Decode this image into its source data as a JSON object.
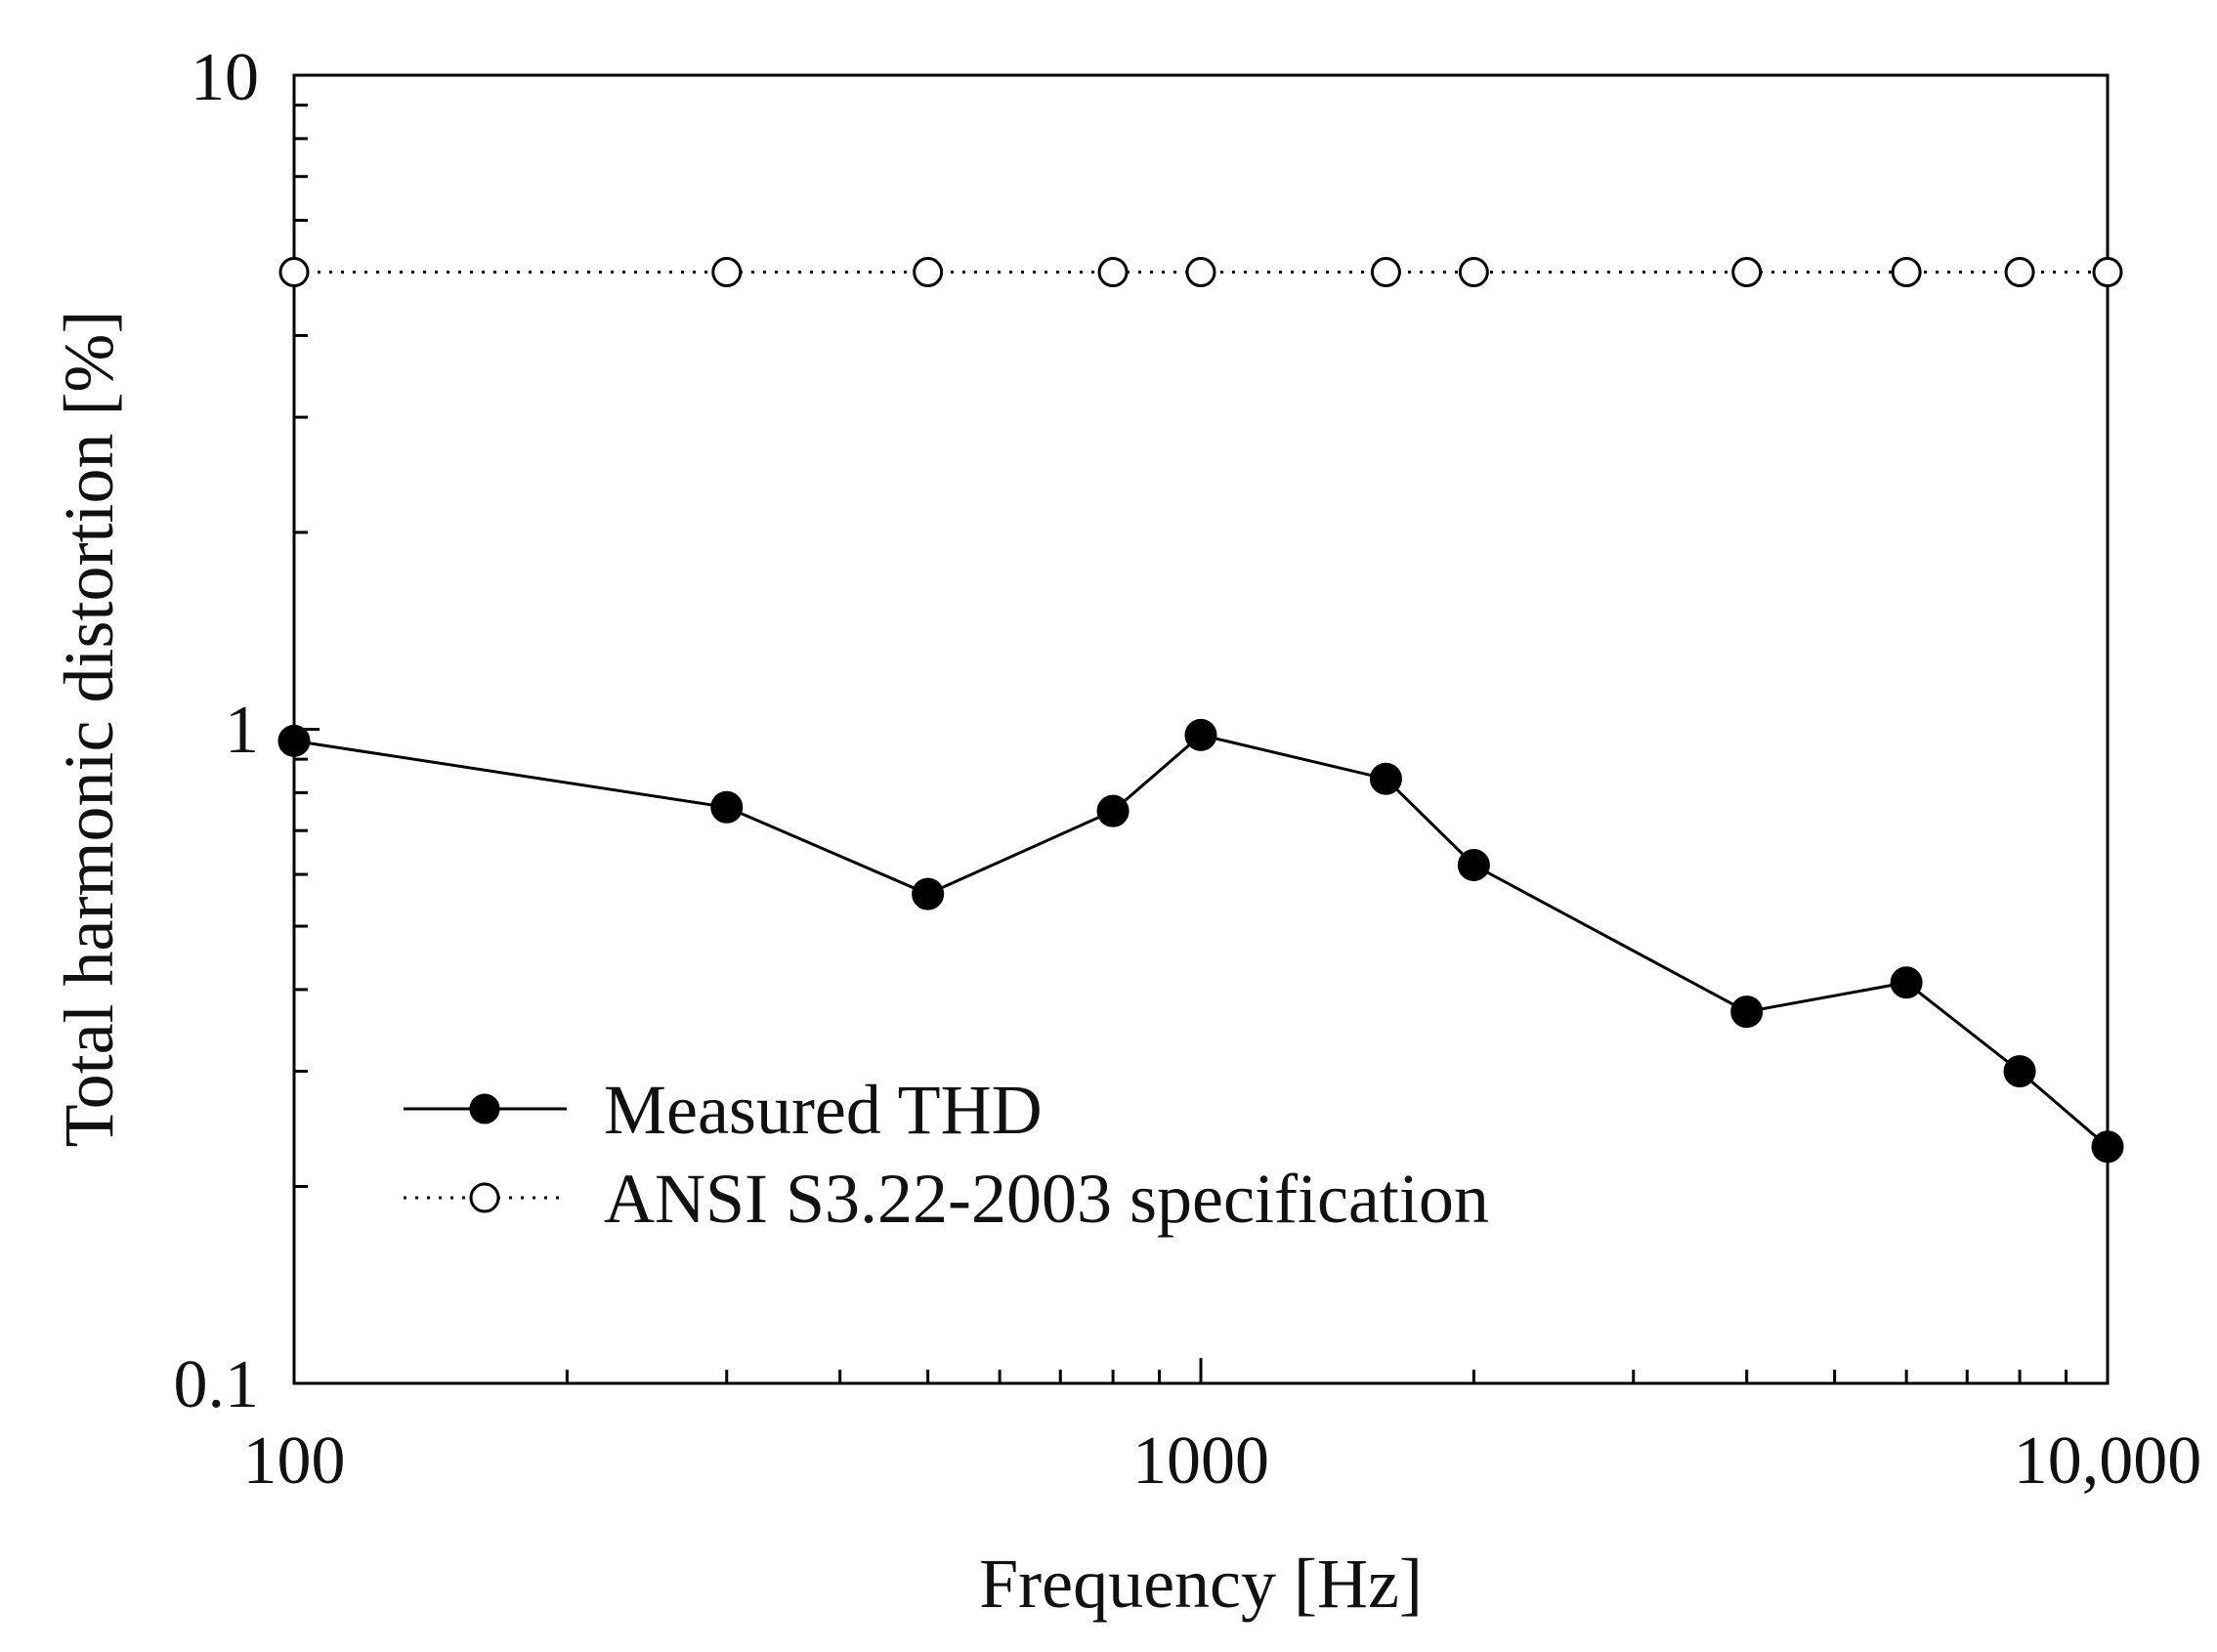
{
  "chart_data": {
    "type": "line",
    "title": "",
    "xlabel": "Frequency [Hz]",
    "ylabel": "Total harmonic distortion [%]",
    "x_scale": "log",
    "y_scale": "log",
    "xlim": [
      100,
      10000
    ],
    "ylim": [
      0.1,
      10
    ],
    "x_tick_labels": [
      "100",
      "1000",
      "10,000"
    ],
    "y_tick_labels": [
      "0.1",
      "1",
      "10"
    ],
    "grid": false,
    "legend_position": "lower-left",
    "x": [
      100,
      300,
      500,
      800,
      1000,
      1600,
      2000,
      4000,
      6000,
      8000,
      10000
    ],
    "series": [
      {
        "name": "Measured THD",
        "style": "solid",
        "marker": "filled-circle",
        "values": [
          0.96,
          0.76,
          0.56,
          0.75,
          0.98,
          0.84,
          0.62,
          0.37,
          0.41,
          0.3,
          0.23
        ]
      },
      {
        "name": "ANSI S3.22-2003 specification",
        "style": "dotted",
        "marker": "open-circle",
        "values": [
          5,
          5,
          5,
          5,
          5,
          5,
          5,
          5,
          5,
          5,
          5
        ]
      }
    ],
    "colors": {
      "line": "#000000",
      "marker_fill": "#000000",
      "open_marker_fill": "#ffffff"
    }
  }
}
